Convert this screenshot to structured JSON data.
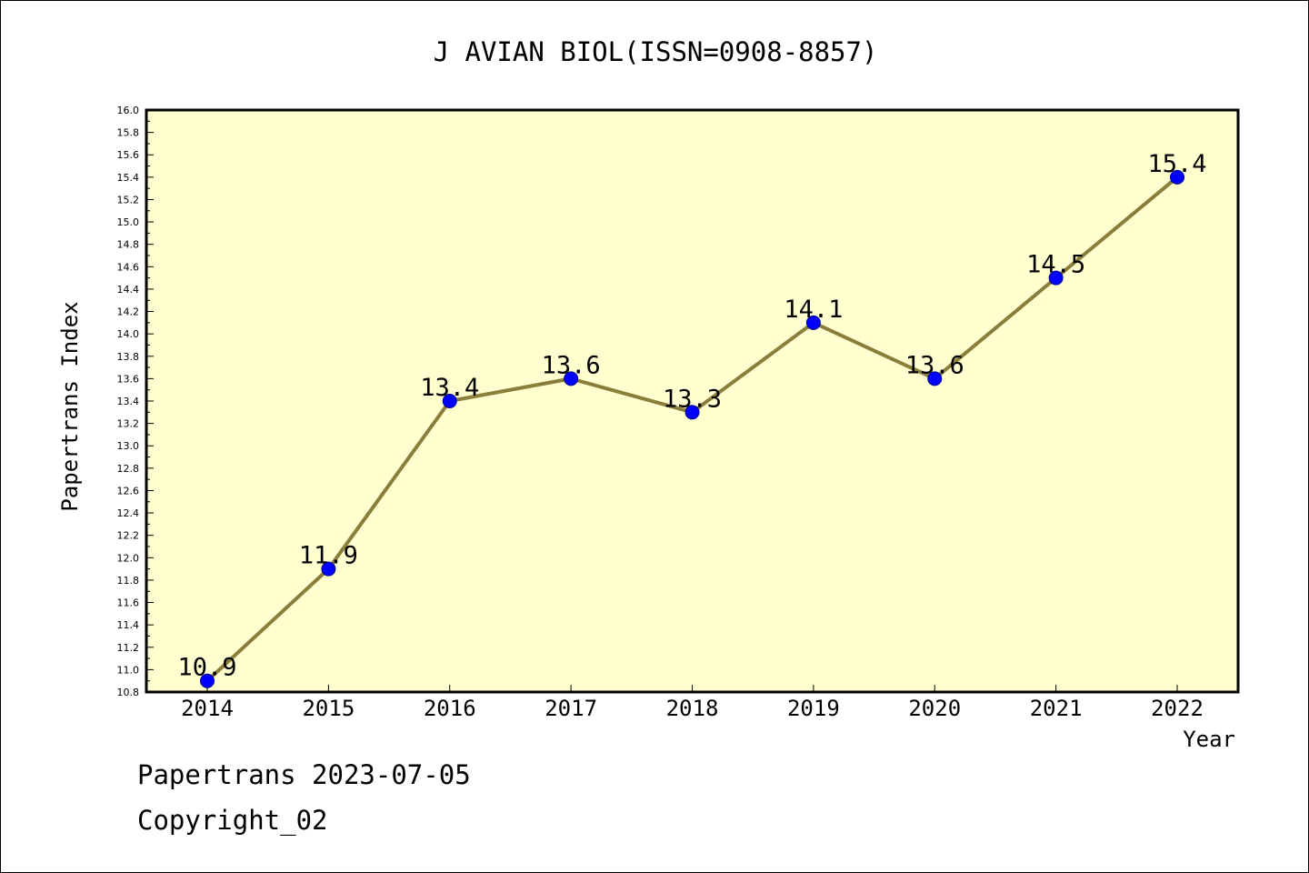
{
  "chart_data": {
    "type": "line",
    "title": "J AVIAN BIOL(ISSN=0908-8857)",
    "xlabel": "Year",
    "ylabel": "Papertrans Index",
    "categories": [
      "2014",
      "2015",
      "2016",
      "2017",
      "2018",
      "2019",
      "2020",
      "2021",
      "2022"
    ],
    "series": [
      {
        "values": [
          10.9,
          11.9,
          13.4,
          13.6,
          13.3,
          14.1,
          13.6,
          14.5,
          15.4
        ],
        "labels": [
          "10.9",
          "11.9",
          "13.4",
          "13.6",
          "13.3",
          "14.1",
          "13.6",
          "14.5",
          "15.4"
        ]
      }
    ],
    "ylim": [
      10.8,
      16.0
    ],
    "yticks": [
      "10.8",
      "11.0",
      "11.2",
      "11.4",
      "11.6",
      "11.8",
      "12.0",
      "12.2",
      "12.4",
      "12.6",
      "12.8",
      "13.0",
      "13.2",
      "13.4",
      "13.6",
      "13.8",
      "14.0",
      "14.2",
      "14.4",
      "14.6",
      "14.8",
      "15.0",
      "15.2",
      "15.4",
      "15.6",
      "15.8",
      "16.0"
    ],
    "grid": false,
    "colors": {
      "plot_background": "#ffffd0",
      "line": "#8b7d3a",
      "marker": "#0000ff"
    }
  },
  "footer": {
    "line1": "Papertrans 2023-07-05",
    "line2": "Copyright_02"
  }
}
